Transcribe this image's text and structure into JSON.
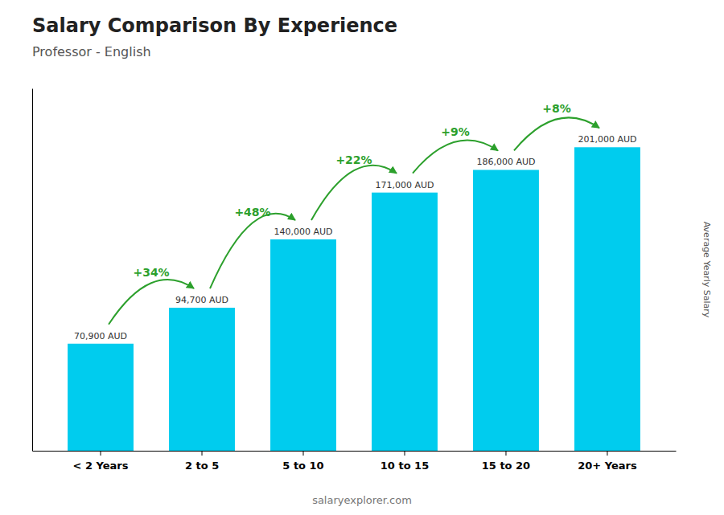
{
  "chart_data": {
    "type": "bar",
    "title": "Salary Comparison By Experience",
    "subtitle": "Professor - English",
    "categories": [
      "< 2 Years",
      "2 to 5",
      "5 to 10",
      "10 to 15",
      "15 to 20",
      "20+ Years"
    ],
    "values": [
      70900,
      94700,
      140000,
      171000,
      186000,
      201000
    ],
    "value_labels": [
      "70,900 AUD",
      "94,700 AUD",
      "140,000 AUD",
      "171,000 AUD",
      "186,000 AUD",
      "201,000 AUD"
    ],
    "data_labels": true,
    "color": "#00ccee",
    "ylabel": "Average Yearly Salary",
    "annotations": [
      "+34%",
      "+48%",
      "+22%",
      "+9%",
      "+8%"
    ],
    "watermark": "salaryexplorer.com",
    "ylim": [
      0,
      240000
    ],
    "yticks": [],
    "grid": false,
    "tick_labels": "x"
  }
}
